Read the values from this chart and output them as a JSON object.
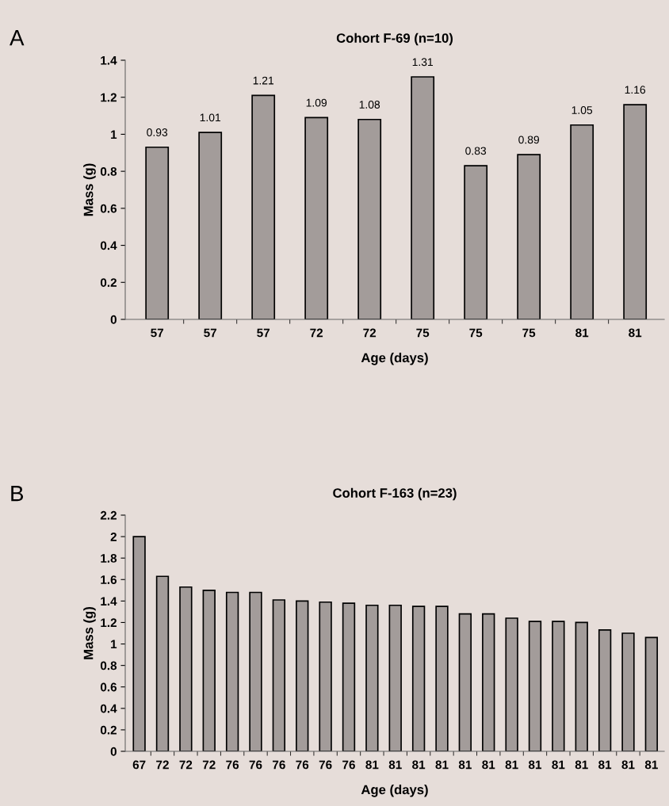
{
  "chart_data": [
    {
      "type": "bar",
      "title": "Cohort F-69 (n=10)",
      "xlabel": "Age (days)",
      "ylabel": "Mass (g)",
      "annotations": [
        "A"
      ],
      "categories": [
        "57",
        "57",
        "57",
        "72",
        "72",
        "75",
        "75",
        "75",
        "81",
        "81"
      ],
      "values": [
        0.93,
        1.01,
        1.21,
        1.09,
        1.08,
        1.31,
        0.83,
        0.89,
        1.05,
        1.16
      ],
      "color": "#a39c9a",
      "data_labels": true,
      "ylim": [
        0,
        1.4
      ],
      "yticks": [
        0,
        0.2,
        0.4,
        0.6,
        0.8,
        1,
        1.2,
        1.4
      ],
      "grid": false,
      "legend": false
    },
    {
      "type": "bar",
      "title": "Cohort F-163 (n=23)",
      "xlabel": "Age (days)",
      "ylabel": "Mass (g)",
      "annotations": [
        "B"
      ],
      "categories": [
        "67",
        "72",
        "72",
        "72",
        "76",
        "76",
        "76",
        "76",
        "76",
        "76",
        "81",
        "81",
        "81",
        "81",
        "81",
        "81",
        "81",
        "81",
        "81",
        "81",
        "81",
        "81",
        "81"
      ],
      "values": [
        2.0,
        1.63,
        1.53,
        1.5,
        1.48,
        1.48,
        1.41,
        1.4,
        1.39,
        1.38,
        1.36,
        1.36,
        1.35,
        1.35,
        1.28,
        1.28,
        1.24,
        1.21,
        1.21,
        1.2,
        1.13,
        1.1,
        1.06
      ],
      "color": "#a39c9a",
      "ylim": [
        0,
        2.2
      ],
      "yticks": [
        0,
        0.2,
        0.4,
        0.6,
        0.8,
        1,
        1.2,
        1.4,
        1.6,
        1.8,
        2,
        2.2
      ],
      "grid": false,
      "legend": false
    }
  ]
}
